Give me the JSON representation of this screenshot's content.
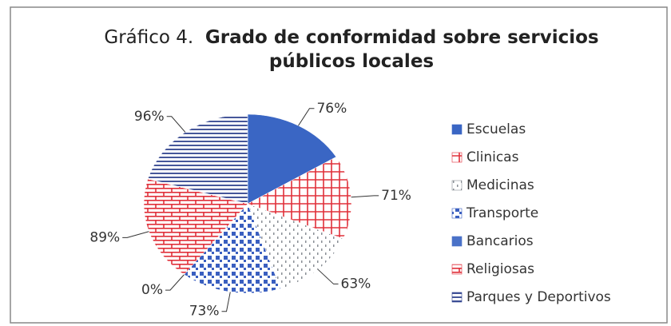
{
  "chart_data": {
    "type": "pie",
    "title_prefix": "Gráfico 4.",
    "title": "Grado de conformidad sobre servicios públicos locales",
    "categories": [
      "Escuelas",
      "Clinicas",
      "Medicinas",
      "Transporte",
      "Bancarios",
      "Religiosas",
      "Parques y Deportivos"
    ],
    "values": [
      76,
      71,
      63,
      73,
      0,
      89,
      96
    ],
    "value_labels": [
      "76%",
      "71%",
      "63%",
      "73%",
      "0%",
      "89%",
      "96%"
    ],
    "colors": [
      "#3a66c4",
      "#e0303a",
      "#8a8f96",
      "#3a5fc0",
      "#4a72c8",
      "#e0303a",
      "#2c3f8c"
    ]
  }
}
